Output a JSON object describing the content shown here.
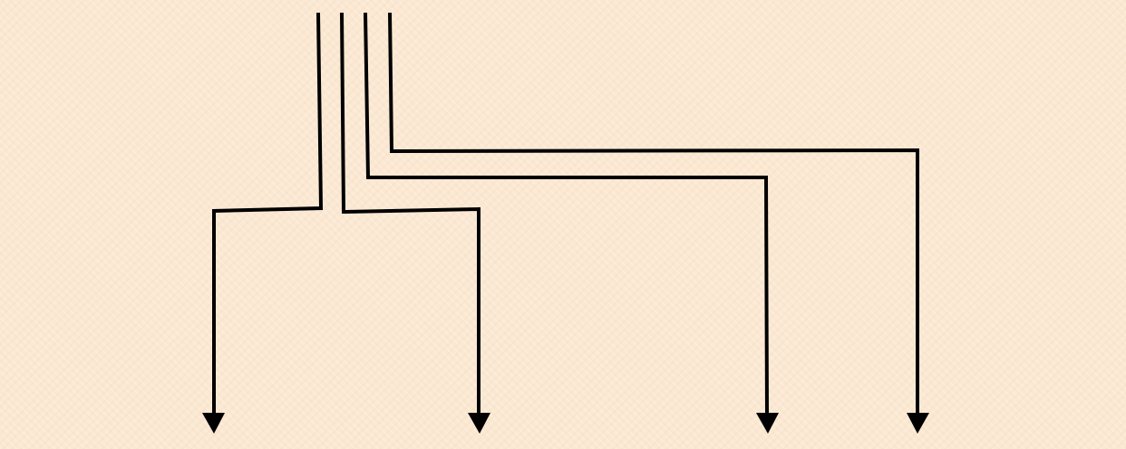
{
  "diagram": {
    "background_color": "#fbe8d2",
    "line_color": "#000000",
    "connectors": [
      {
        "id": "line-1",
        "arrowhead": "down"
      },
      {
        "id": "line-2",
        "arrowhead": "down"
      },
      {
        "id": "line-3",
        "arrowhead": "down"
      },
      {
        "id": "line-4",
        "arrowhead": "down"
      }
    ]
  }
}
